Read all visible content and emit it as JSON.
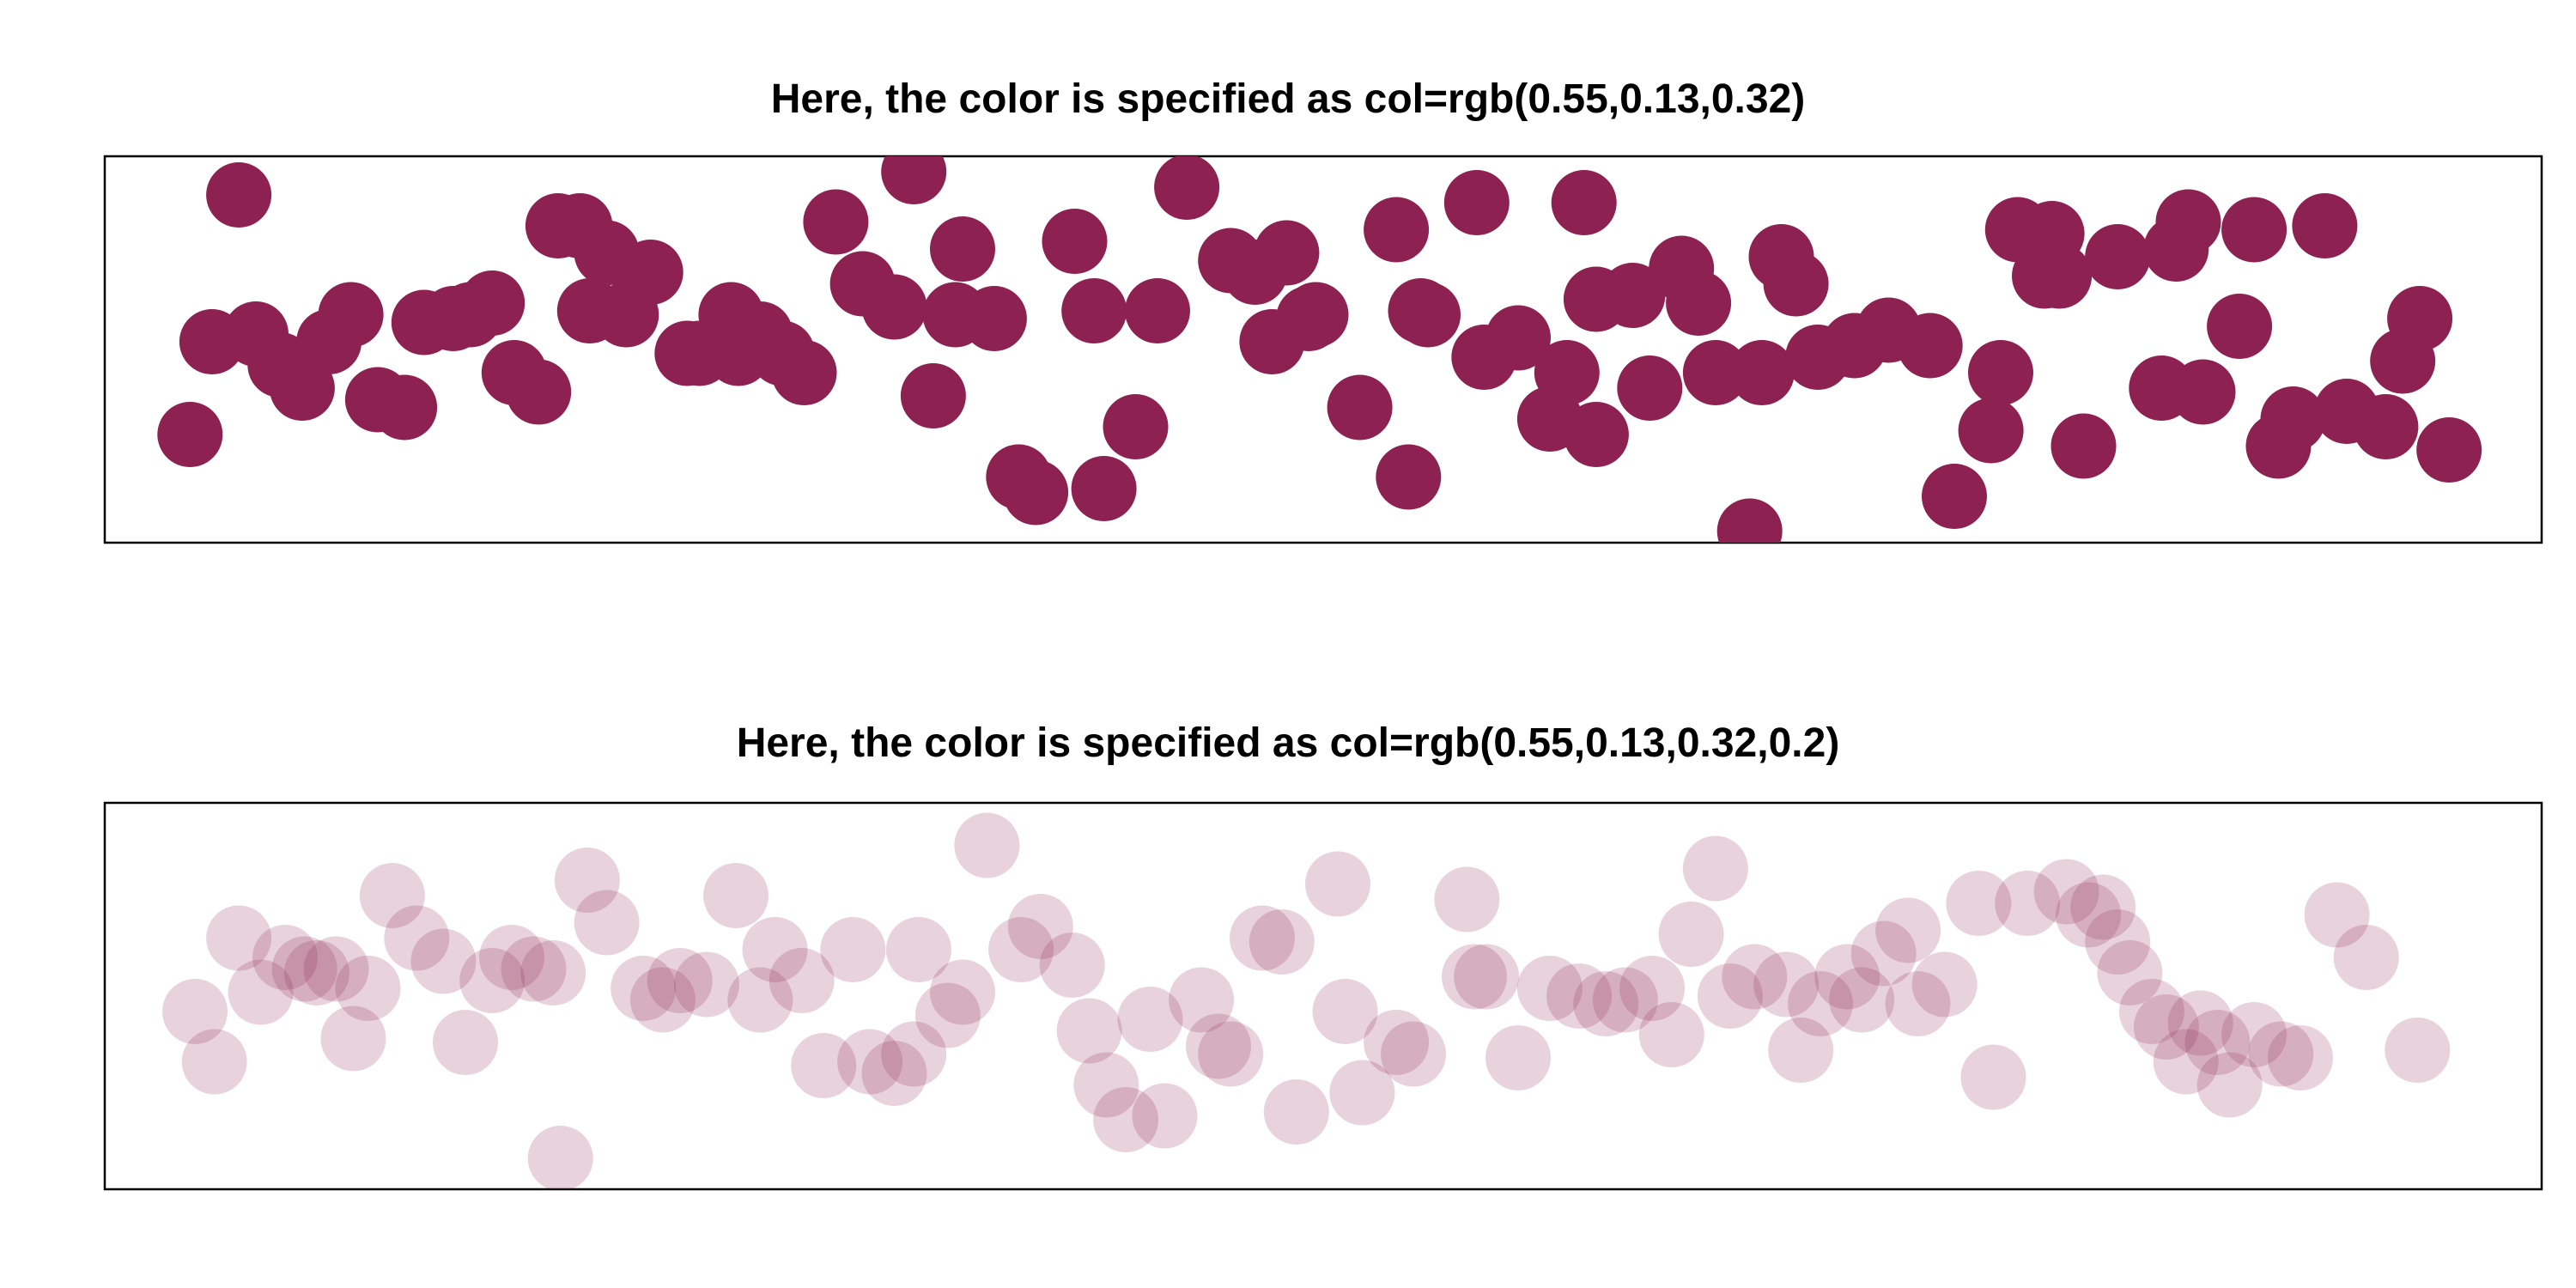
{
  "chart_data": [
    {
      "type": "scatter",
      "title": "Here, the color is specified as col=rgb(0.55,0.13,0.32)",
      "color": "#8C2152",
      "opacity": 1.0,
      "axes_visible": false,
      "xlim": [
        0,
        100
      ],
      "ylim": [
        0,
        100
      ],
      "points": [
        [
          3.5,
          28
        ],
        [
          4.4,
          52
        ],
        [
          5.5,
          90
        ],
        [
          6.2,
          54
        ],
        [
          7.2,
          46
        ],
        [
          8.1,
          40
        ],
        [
          9.2,
          52
        ],
        [
          10.1,
          59
        ],
        [
          11.2,
          37
        ],
        [
          12.3,
          35
        ],
        [
          13.1,
          57
        ],
        [
          14.3,
          58
        ],
        [
          15.0,
          59
        ],
        [
          15.9,
          62
        ],
        [
          16.8,
          44
        ],
        [
          17.8,
          39
        ],
        [
          18.6,
          82
        ],
        [
          19.5,
          82
        ],
        [
          19.9,
          60
        ],
        [
          20.6,
          75
        ],
        [
          21.4,
          59
        ],
        [
          22.4,
          70
        ],
        [
          23.9,
          49
        ],
        [
          24.4,
          49
        ],
        [
          25.7,
          59
        ],
        [
          26.0,
          49
        ],
        [
          26.9,
          54
        ],
        [
          27.8,
          49
        ],
        [
          28.7,
          44
        ],
        [
          30.0,
          83
        ],
        [
          31.1,
          67
        ],
        [
          32.4,
          61
        ],
        [
          33.2,
          96
        ],
        [
          34.0,
          38
        ],
        [
          34.9,
          59
        ],
        [
          35.2,
          76
        ],
        [
          36.5,
          58
        ],
        [
          37.5,
          17
        ],
        [
          38.2,
          13
        ],
        [
          39.8,
          78
        ],
        [
          40.6,
          60
        ],
        [
          41.0,
          14
        ],
        [
          42.3,
          30
        ],
        [
          43.2,
          60
        ],
        [
          44.4,
          92
        ],
        [
          46.2,
          73
        ],
        [
          47.2,
          70
        ],
        [
          47.9,
          52
        ],
        [
          48.5,
          75
        ],
        [
          49.4,
          58
        ],
        [
          49.7,
          59
        ],
        [
          51.5,
          35
        ],
        [
          53.0,
          81
        ],
        [
          53.5,
          17
        ],
        [
          54.0,
          60
        ],
        [
          54.3,
          59
        ],
        [
          56.6,
          48
        ],
        [
          56.3,
          88
        ],
        [
          58.0,
          53
        ],
        [
          59.3,
          32
        ],
        [
          60.0,
          44
        ],
        [
          60.7,
          88
        ],
        [
          61.2,
          63
        ],
        [
          61.2,
          28
        ],
        [
          62.7,
          64
        ],
        [
          63.4,
          40
        ],
        [
          64.7,
          71
        ],
        [
          65.4,
          62
        ],
        [
          66.1,
          44
        ],
        [
          67.5,
          3
        ],
        [
          68.0,
          44
        ],
        [
          68.8,
          74
        ],
        [
          69.4,
          67
        ],
        [
          70.3,
          48
        ],
        [
          71.8,
          51
        ],
        [
          73.2,
          55
        ],
        [
          74.9,
          51
        ],
        [
          75.9,
          12
        ],
        [
          77.4,
          29
        ],
        [
          77.8,
          44
        ],
        [
          78.5,
          81
        ],
        [
          79.6,
          69
        ],
        [
          79.9,
          80
        ],
        [
          80.2,
          69
        ],
        [
          81.2,
          25
        ],
        [
          82.6,
          74
        ],
        [
          84.4,
          40
        ],
        [
          85.0,
          76
        ],
        [
          85.5,
          83
        ],
        [
          86.1,
          39
        ],
        [
          87.6,
          56
        ],
        [
          88.2,
          81
        ],
        [
          89.2,
          25
        ],
        [
          89.8,
          32
        ],
        [
          91.1,
          82
        ],
        [
          92.0,
          34
        ],
        [
          93.6,
          30
        ],
        [
          94.3,
          47
        ],
        [
          95.0,
          58
        ],
        [
          96.2,
          24
        ]
      ]
    },
    {
      "type": "scatter",
      "title": "Here, the color is specified as col=rgb(0.55,0.13,0.32,0.2)",
      "color": "#8C2152",
      "opacity": 0.2,
      "axes_visible": false,
      "xlim": [
        0,
        100
      ],
      "ylim": [
        0,
        100
      ],
      "points": [
        [
          3.7,
          46
        ],
        [
          4.5,
          33
        ],
        [
          5.5,
          65
        ],
        [
          6.4,
          51
        ],
        [
          7.4,
          60
        ],
        [
          8.2,
          57
        ],
        [
          8.7,
          56
        ],
        [
          9.5,
          57
        ],
        [
          10.2,
          39
        ],
        [
          10.8,
          52
        ],
        [
          11.8,
          76
        ],
        [
          12.8,
          65
        ],
        [
          13.9,
          59
        ],
        [
          14.8,
          38
        ],
        [
          15.9,
          54
        ],
        [
          16.7,
          60
        ],
        [
          17.6,
          57
        ],
        [
          18.4,
          56
        ],
        [
          18.7,
          8
        ],
        [
          19.8,
          80
        ],
        [
          20.6,
          69
        ],
        [
          22.1,
          52
        ],
        [
          22.9,
          49
        ],
        [
          23.6,
          54
        ],
        [
          24.7,
          53
        ],
        [
          25.9,
          76
        ],
        [
          26.9,
          49
        ],
        [
          27.5,
          62
        ],
        [
          28.6,
          54
        ],
        [
          29.5,
          32
        ],
        [
          30.7,
          62
        ],
        [
          31.4,
          33
        ],
        [
          32.4,
          30
        ],
        [
          33.2,
          35
        ],
        [
          33.4,
          62
        ],
        [
          34.6,
          45
        ],
        [
          35.2,
          51
        ],
        [
          36.2,
          89
        ],
        [
          37.6,
          62
        ],
        [
          38.4,
          68
        ],
        [
          39.7,
          58
        ],
        [
          40.4,
          41
        ],
        [
          41.1,
          27
        ],
        [
          41.9,
          18
        ],
        [
          42.9,
          44
        ],
        [
          43.5,
          19
        ],
        [
          45.0,
          49
        ],
        [
          45.7,
          37
        ],
        [
          46.2,
          35
        ],
        [
          47.5,
          65
        ],
        [
          48.3,
          64
        ],
        [
          48.9,
          20
        ],
        [
          50.6,
          79
        ],
        [
          50.9,
          46
        ],
        [
          51.6,
          25
        ],
        [
          53.0,
          38
        ],
        [
          53.7,
          35
        ],
        [
          55.9,
          75
        ],
        [
          56.2,
          55
        ],
        [
          56.7,
          55
        ],
        [
          58.0,
          34
        ],
        [
          59.3,
          52
        ],
        [
          60.5,
          50
        ],
        [
          61.6,
          48
        ],
        [
          62.4,
          49
        ],
        [
          63.5,
          52
        ],
        [
          64.3,
          40
        ],
        [
          65.1,
          66
        ],
        [
          66.1,
          83
        ],
        [
          66.7,
          50
        ],
        [
          67.7,
          55
        ],
        [
          69.0,
          53
        ],
        [
          69.6,
          36
        ],
        [
          70.4,
          48
        ],
        [
          71.5,
          55
        ],
        [
          72.1,
          49
        ],
        [
          73.0,
          61
        ],
        [
          74.0,
          67
        ],
        [
          74.4,
          48
        ],
        [
          75.5,
          53
        ],
        [
          76.9,
          74
        ],
        [
          77.5,
          29
        ],
        [
          78.9,
          74
        ],
        [
          80.5,
          77
        ],
        [
          81.4,
          71
        ],
        [
          82.0,
          73
        ],
        [
          82.6,
          64
        ],
        [
          83.1,
          56
        ],
        [
          84.0,
          46
        ],
        [
          84.6,
          42
        ],
        [
          85.4,
          33
        ],
        [
          86.0,
          43
        ],
        [
          86.7,
          38
        ],
        [
          87.2,
          27
        ],
        [
          88.2,
          40
        ],
        [
          89.3,
          35
        ],
        [
          90.1,
          34
        ],
        [
          91.6,
          71
        ],
        [
          92.8,
          60
        ],
        [
          94.9,
          36
        ]
      ]
    }
  ]
}
